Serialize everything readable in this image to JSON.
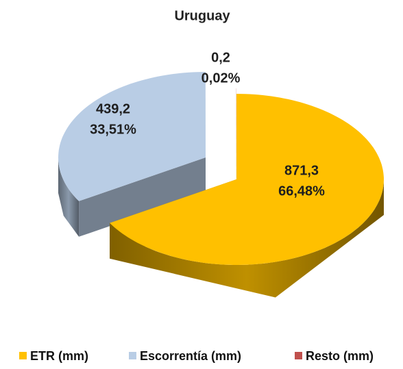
{
  "chart_data": {
    "type": "pie",
    "title": "Uruguay",
    "categories": [
      "ETR (mm)",
      "Escorrentía (mm)",
      "Resto (mm)"
    ],
    "values": [
      871.3,
      439.2,
      0.2
    ],
    "value_labels": [
      "871,3",
      "439,2",
      "0,2"
    ],
    "percents": [
      66.48,
      33.51,
      0.02
    ],
    "percent_labels": [
      "66,48%",
      "33,51%",
      "0,02%"
    ],
    "colors": [
      "#ffc000",
      "#b9cde5",
      "#c0504d"
    ],
    "legend": "bottom"
  }
}
